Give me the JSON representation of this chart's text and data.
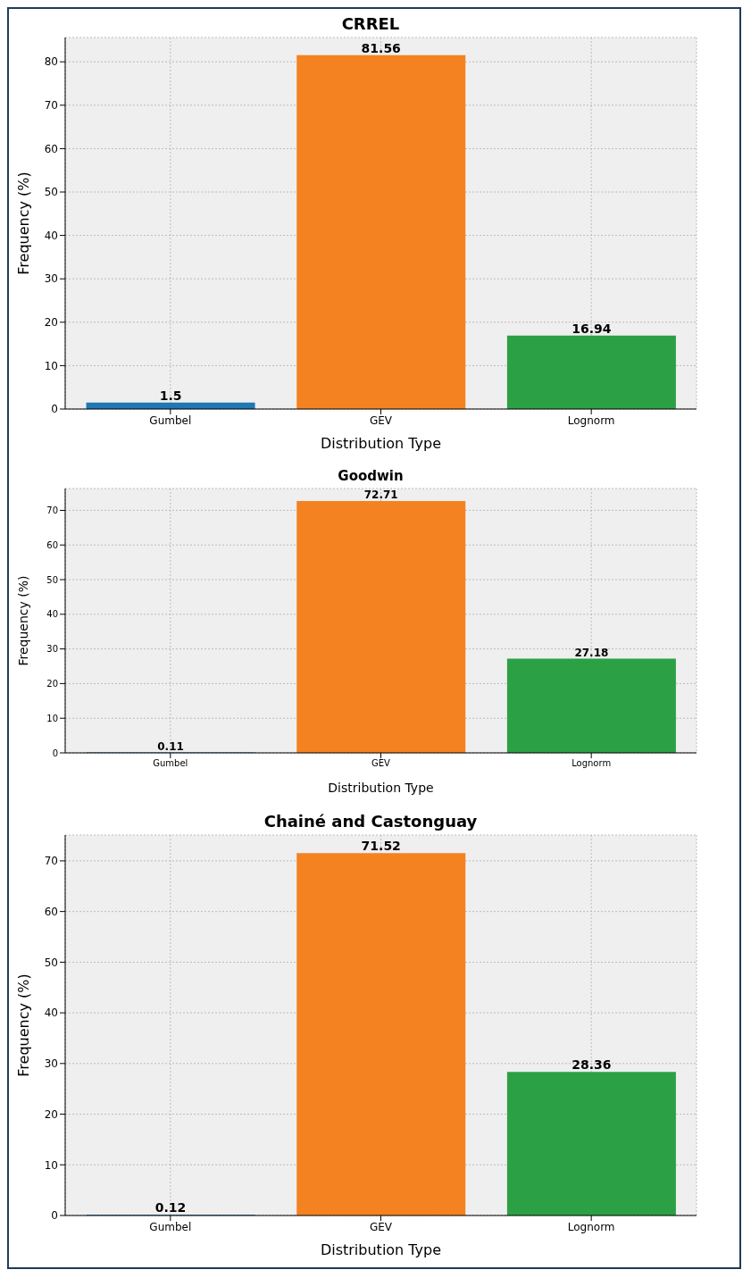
{
  "chart_data": [
    {
      "type": "bar",
      "title": "CRREL",
      "xlabel": "Distribution Type",
      "ylabel": "Frequency (%)",
      "categories": [
        "Gumbel",
        "GEV",
        "Lognorm"
      ],
      "values": [
        1.5,
        81.56,
        16.94
      ],
      "colors": [
        "#1f77b4",
        "#f58220",
        "#2ca044"
      ],
      "ylim": [
        0,
        85.6
      ],
      "yticks": [
        0,
        10,
        20,
        30,
        40,
        50,
        60,
        70,
        80
      ],
      "grid": true,
      "data_labels": true
    },
    {
      "type": "bar",
      "title": "Goodwin",
      "xlabel": "Distribution Type",
      "ylabel": "Frequency (%)",
      "categories": [
        "Gumbel",
        "GEV",
        "Lognorm"
      ],
      "values": [
        0.11,
        72.71,
        27.18
      ],
      "colors": [
        "#1f77b4",
        "#f58220",
        "#2ca044"
      ],
      "ylim": [
        0,
        76.3
      ],
      "yticks": [
        0,
        10,
        20,
        30,
        40,
        50,
        60,
        70
      ],
      "grid": true,
      "data_labels": true
    },
    {
      "type": "bar",
      "title": "Chainé and Castonguay",
      "xlabel": "Distribution Type",
      "ylabel": "Frequency (%)",
      "categories": [
        "Gumbel",
        "GEV",
        "Lognorm"
      ],
      "values": [
        0.12,
        71.52,
        28.36
      ],
      "colors": [
        "#1f77b4",
        "#f58220",
        "#2ca044"
      ],
      "ylim": [
        0,
        75.1
      ],
      "yticks": [
        0,
        10,
        20,
        30,
        40,
        50,
        60,
        70
      ],
      "grid": true,
      "data_labels": true
    }
  ]
}
